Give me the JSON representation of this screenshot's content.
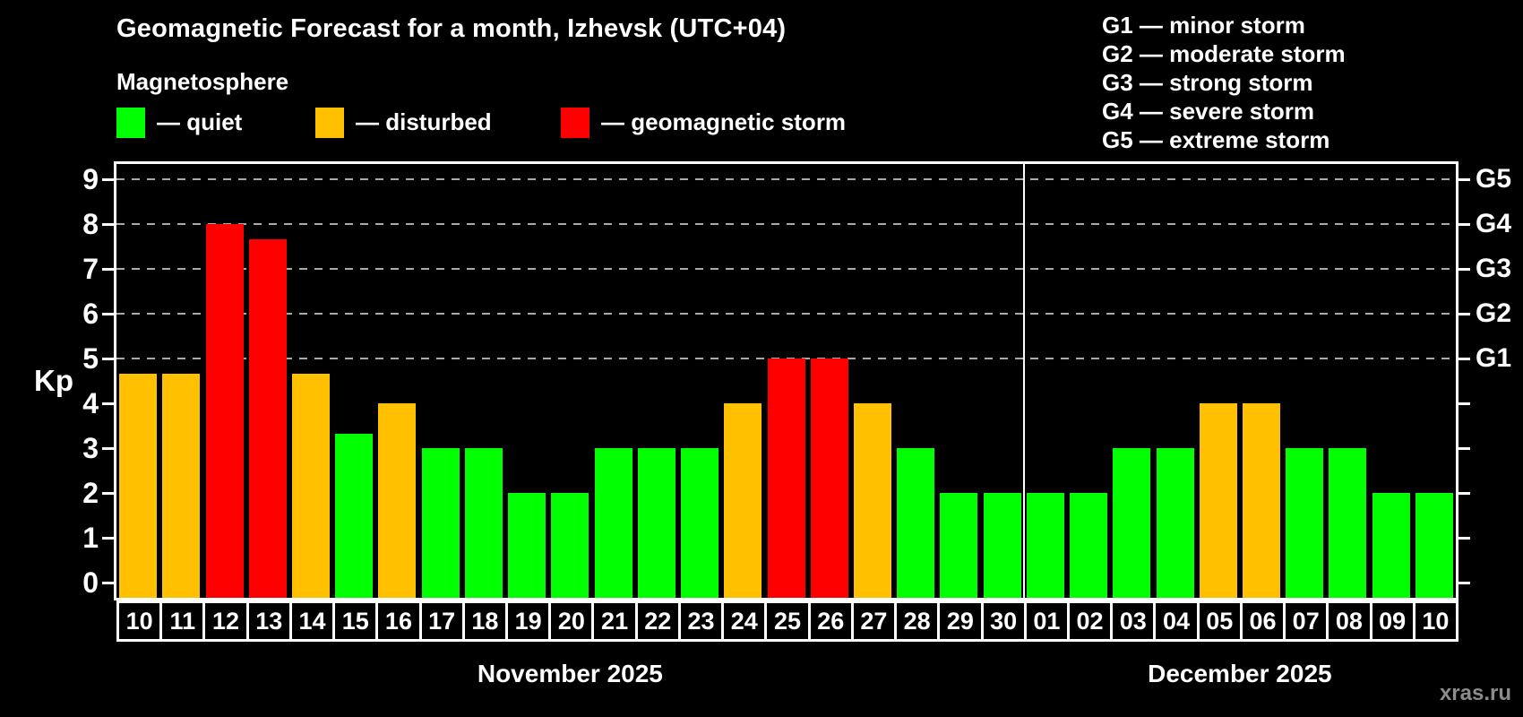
{
  "header": {
    "title": "Geomagnetic Forecast for a month, Izhevsk (UTC+04)",
    "subtitle": "Magnetosphere"
  },
  "legend": {
    "items": [
      {
        "key": "quiet",
        "label": "— quiet",
        "color": "#00ff00"
      },
      {
        "key": "disturbed",
        "label": "— disturbed",
        "color": "#ffc000"
      },
      {
        "key": "storm",
        "label": "— geomagnetic storm",
        "color": "#ff0000"
      }
    ]
  },
  "storm_scale": {
    "lines": [
      "G1 — minor storm",
      "G2 — moderate storm",
      "G3 — strong storm",
      "G4 — severe storm",
      "G5 — extreme storm"
    ]
  },
  "watermark": "xras.ru",
  "chart_data": {
    "type": "bar",
    "title": "Geomagnetic Forecast for a month, Izhevsk (UTC+04)",
    "ylabel": "Kp",
    "ylim": [
      -0.34,
      9.34
    ],
    "yticks": [
      0,
      1,
      2,
      3,
      4,
      5,
      6,
      7,
      8,
      9
    ],
    "gridlines": [
      5,
      6,
      7,
      8,
      9
    ],
    "grid_style": "dashed gray horizontal at storm levels",
    "legend_position": "top-left",
    "right_axis_labels": [
      {
        "value": 5,
        "label": "G1"
      },
      {
        "value": 6,
        "label": "G2"
      },
      {
        "value": 7,
        "label": "G3"
      },
      {
        "value": 8,
        "label": "G4"
      },
      {
        "value": 9,
        "label": "G5"
      }
    ],
    "status_colors": {
      "quiet": "#00ff00",
      "disturbed": "#ffc000",
      "storm": "#ff0000"
    },
    "months": [
      {
        "label": "November 2025",
        "day_count": 21
      },
      {
        "label": "December 2025",
        "day_count": 10
      }
    ],
    "bars": [
      {
        "day": "10",
        "kp": 4.67,
        "status": "disturbed"
      },
      {
        "day": "11",
        "kp": 4.67,
        "status": "disturbed"
      },
      {
        "day": "12",
        "kp": 8.0,
        "status": "storm"
      },
      {
        "day": "13",
        "kp": 7.67,
        "status": "storm"
      },
      {
        "day": "14",
        "kp": 4.67,
        "status": "disturbed"
      },
      {
        "day": "15",
        "kp": 3.33,
        "status": "quiet"
      },
      {
        "day": "16",
        "kp": 4.0,
        "status": "disturbed"
      },
      {
        "day": "17",
        "kp": 3.0,
        "status": "quiet"
      },
      {
        "day": "18",
        "kp": 3.0,
        "status": "quiet"
      },
      {
        "day": "19",
        "kp": 2.0,
        "status": "quiet"
      },
      {
        "day": "20",
        "kp": 2.0,
        "status": "quiet"
      },
      {
        "day": "21",
        "kp": 3.0,
        "status": "quiet"
      },
      {
        "day": "22",
        "kp": 3.0,
        "status": "quiet"
      },
      {
        "day": "23",
        "kp": 3.0,
        "status": "quiet"
      },
      {
        "day": "24",
        "kp": 4.0,
        "status": "disturbed"
      },
      {
        "day": "25",
        "kp": 5.0,
        "status": "storm"
      },
      {
        "day": "26",
        "kp": 5.0,
        "status": "storm"
      },
      {
        "day": "27",
        "kp": 4.0,
        "status": "disturbed"
      },
      {
        "day": "28",
        "kp": 3.0,
        "status": "quiet"
      },
      {
        "day": "29",
        "kp": 2.0,
        "status": "quiet"
      },
      {
        "day": "30",
        "kp": 2.0,
        "status": "quiet"
      },
      {
        "day": "01",
        "kp": 2.0,
        "status": "quiet"
      },
      {
        "day": "02",
        "kp": 2.0,
        "status": "quiet"
      },
      {
        "day": "03",
        "kp": 3.0,
        "status": "quiet"
      },
      {
        "day": "04",
        "kp": 3.0,
        "status": "quiet"
      },
      {
        "day": "05",
        "kp": 4.0,
        "status": "disturbed"
      },
      {
        "day": "06",
        "kp": 4.0,
        "status": "disturbed"
      },
      {
        "day": "07",
        "kp": 3.0,
        "status": "quiet"
      },
      {
        "day": "08",
        "kp": 3.0,
        "status": "quiet"
      },
      {
        "day": "09",
        "kp": 2.0,
        "status": "quiet"
      },
      {
        "day": "10",
        "kp": 2.0,
        "status": "quiet"
      }
    ]
  }
}
